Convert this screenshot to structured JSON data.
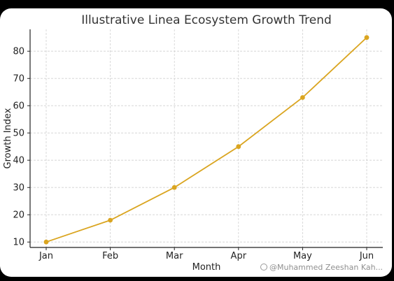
{
  "chart_data": {
    "type": "line",
    "title": "Illustrative Linea Ecosystem Growth Trend",
    "xlabel": "Month",
    "ylabel": "Growth Index",
    "categories": [
      "Jan",
      "Feb",
      "Mar",
      "Apr",
      "May",
      "Jun"
    ],
    "series": [
      {
        "values": [
          10,
          18,
          30,
          45,
          63,
          85
        ],
        "color": "#DAA520"
      }
    ],
    "yticks": [
      10,
      20,
      30,
      40,
      50,
      60,
      70,
      80
    ],
    "ylim": [
      8,
      88
    ],
    "grid": true,
    "legend": "none"
  },
  "watermark": {
    "text": "@Muhammed Zeeshan Kah..."
  }
}
